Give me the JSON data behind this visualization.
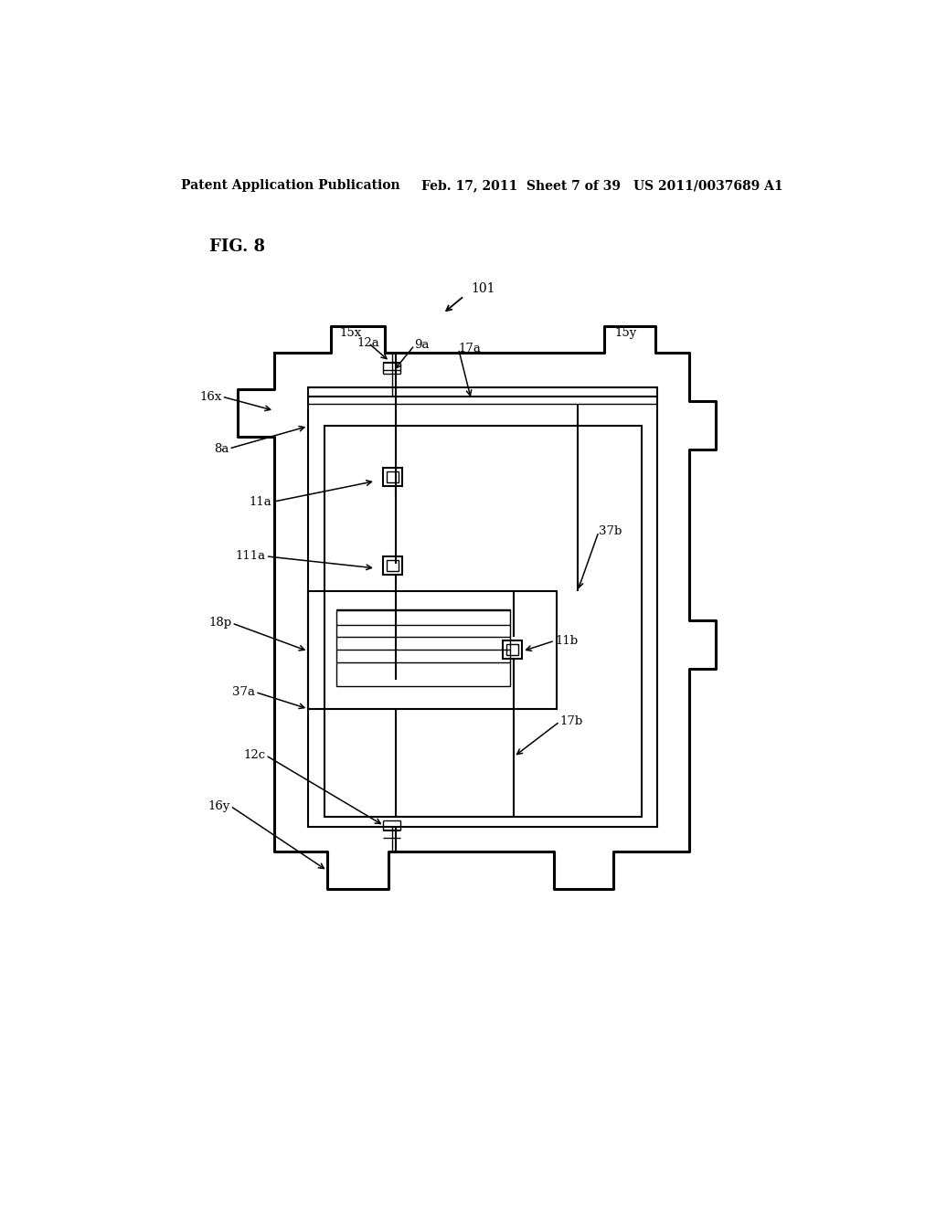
{
  "bg_color": "#ffffff",
  "header_left": "Patent Application Publication",
  "header_mid": "Feb. 17, 2011  Sheet 7 of 39",
  "header_right": "US 2011/0037689 A1",
  "fig_label": "FIG. 8"
}
